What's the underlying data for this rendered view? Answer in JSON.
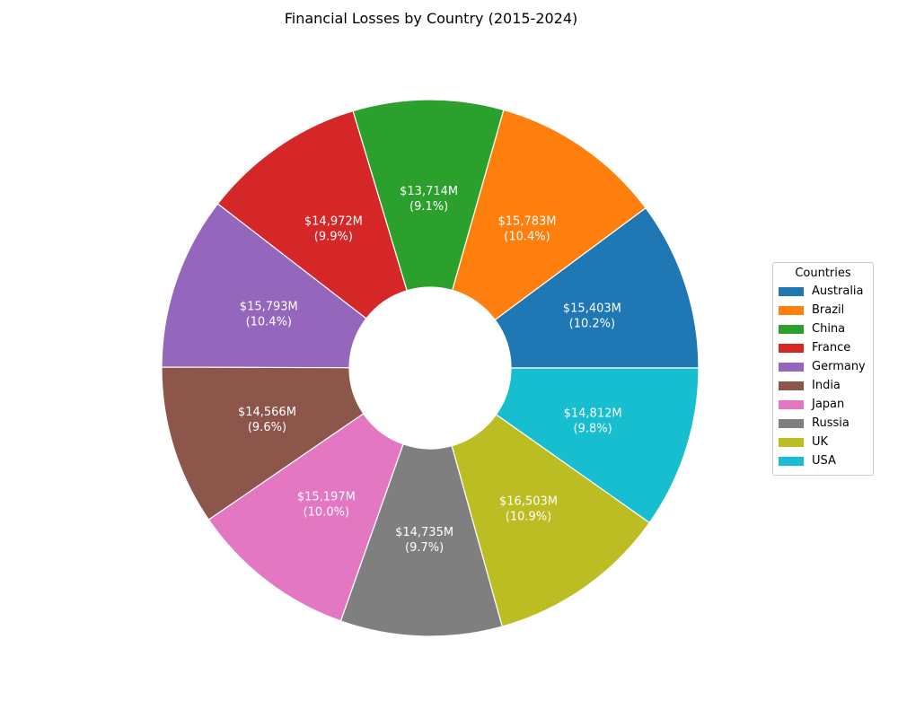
{
  "chart_data": {
    "type": "pie",
    "donut": true,
    "title": "Financial Losses by Country (2015-2024)",
    "legend_title": "Countries",
    "legend_position": "center-right",
    "categories": [
      "Australia",
      "Brazil",
      "China",
      "France",
      "Germany",
      "India",
      "Japan",
      "Russia",
      "UK",
      "USA"
    ],
    "values": [
      15403,
      15783,
      13714,
      14972,
      15793,
      14566,
      15197,
      14735,
      16503,
      14812
    ],
    "labels": [
      "$15,403M",
      "$15,783M",
      "$13,714M",
      "$14,972M",
      "$15,793M",
      "$14,566M",
      "$15,197M",
      "$14,735M",
      "$16,503M",
      "$14,812M"
    ],
    "percent_labels": [
      "(10.2%)",
      "(10.4%)",
      "(9.1%)",
      "(9.9%)",
      "(10.4%)",
      "(9.6%)",
      "(10.0%)",
      "(9.7%)",
      "(10.9%)",
      "(9.8%)"
    ],
    "colors": [
      "#1f77b4",
      "#ff7f0e",
      "#2ca02c",
      "#d62728",
      "#9467bd",
      "#8c564b",
      "#e377c2",
      "#7f7f7f",
      "#bcbd22",
      "#17becf"
    ]
  }
}
